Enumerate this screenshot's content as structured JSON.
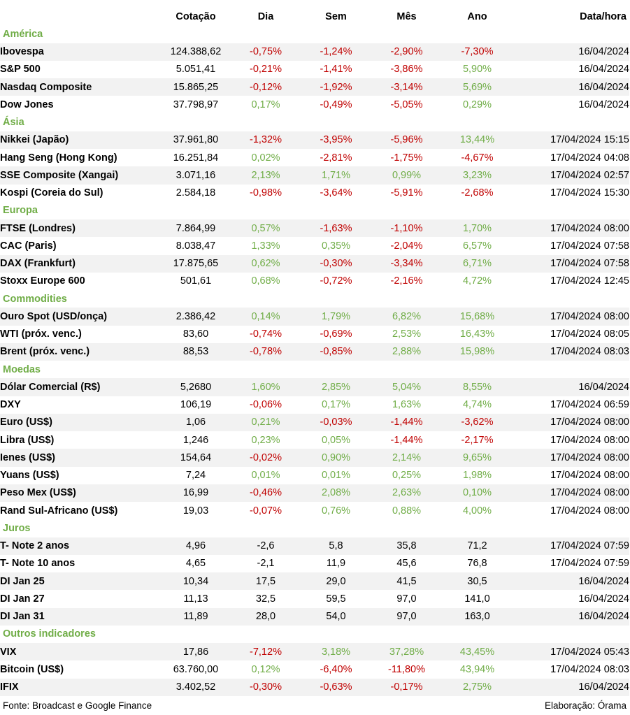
{
  "colors": {
    "section": "#70ad47",
    "positive": "#70ad47",
    "negative": "#c00000",
    "stripe": "#f2f2f2"
  },
  "headers": [
    "",
    "Cotação",
    "Dia",
    "Sem",
    "Mês",
    "Ano",
    "Data/hora"
  ],
  "sections": [
    {
      "title": "América",
      "rows": [
        {
          "name": "Ibovespa",
          "quote": "124.388,62",
          "day": "-0,75%",
          "week": "-1,24%",
          "month": "-2,90%",
          "year": "-7,30%",
          "date": "16/04/2024"
        },
        {
          "name": "S&P 500",
          "quote": "5.051,41",
          "day": "-0,21%",
          "week": "-1,41%",
          "month": "-3,86%",
          "year": "5,90%",
          "date": "16/04/2024"
        },
        {
          "name": "Nasdaq Composite",
          "quote": "15.865,25",
          "day": "-0,12%",
          "week": "-1,92%",
          "month": "-3,14%",
          "year": "5,69%",
          "date": "16/04/2024"
        },
        {
          "name": "Dow Jones",
          "quote": "37.798,97",
          "day": "0,17%",
          "week": "-0,49%",
          "month": "-5,05%",
          "year": "0,29%",
          "date": "16/04/2024"
        }
      ]
    },
    {
      "title": "Ásia",
      "rows": [
        {
          "name": "Nikkei (Japão)",
          "quote": "37.961,80",
          "day": "-1,32%",
          "week": "-3,95%",
          "month": "-5,96%",
          "year": "13,44%",
          "date": "17/04/2024 15:15"
        },
        {
          "name": "Hang Seng (Hong Kong)",
          "quote": "16.251,84",
          "day": "0,02%",
          "week": "-2,81%",
          "month": "-1,75%",
          "year": "-4,67%",
          "date": "17/04/2024 04:08"
        },
        {
          "name": "SSE Composite (Xangai)",
          "quote": "3.071,16",
          "day": "2,13%",
          "week": "1,71%",
          "month": "0,99%",
          "year": "3,23%",
          "date": "17/04/2024 02:57"
        },
        {
          "name": "Kospi (Coreia do Sul)",
          "quote": "2.584,18",
          "day": "-0,98%",
          "week": "-3,64%",
          "month": "-5,91%",
          "year": "-2,68%",
          "date": "17/04/2024 15:30"
        }
      ]
    },
    {
      "title": "Europa",
      "rows": [
        {
          "name": "FTSE (Londres)",
          "quote": "7.864,99",
          "day": "0,57%",
          "week": "-1,63%",
          "month": "-1,10%",
          "year": "1,70%",
          "date": "17/04/2024 08:00"
        },
        {
          "name": "CAC (Paris)",
          "quote": "8.038,47",
          "day": "1,33%",
          "week": "0,35%",
          "month": "-2,04%",
          "year": "6,57%",
          "date": "17/04/2024 07:58"
        },
        {
          "name": "DAX (Frankfurt)",
          "quote": "17.875,65",
          "day": "0,62%",
          "week": "-0,30%",
          "month": "-3,34%",
          "year": "6,71%",
          "date": "17/04/2024 07:58"
        },
        {
          "name": "Stoxx Europe 600",
          "quote": "501,61",
          "day": "0,68%",
          "week": "-0,72%",
          "month": "-2,16%",
          "year": "4,72%",
          "date": "17/04/2024 12:45"
        }
      ]
    },
    {
      "title": "Commodities",
      "rows": [
        {
          "name": "Ouro Spot (USD/onça)",
          "quote": "2.386,42",
          "day": "0,14%",
          "week": "1,79%",
          "month": "6,82%",
          "year": "15,68%",
          "date": "17/04/2024 08:00"
        },
        {
          "name": "WTI (próx. venc.)",
          "quote": "83,60",
          "day": "-0,74%",
          "week": "-0,69%",
          "month": "2,53%",
          "year": "16,43%",
          "date": "17/04/2024 08:05"
        },
        {
          "name": "Brent (próx. venc.)",
          "quote": "88,53",
          "day": "-0,78%",
          "week": "-0,85%",
          "month": "2,88%",
          "year": "15,98%",
          "date": "17/04/2024 08:03"
        }
      ]
    },
    {
      "title": "Moedas",
      "rows": [
        {
          "name": "Dólar Comercial (R$)",
          "quote": "5,2680",
          "day": "1,60%",
          "week": "2,85%",
          "month": "5,04%",
          "year": "8,55%",
          "date": "16/04/2024"
        },
        {
          "name": "DXY",
          "quote": "106,19",
          "day": "-0,06%",
          "week": "0,17%",
          "month": "1,63%",
          "year": "4,74%",
          "date": "17/04/2024 06:59"
        },
        {
          "name": "Euro (US$)",
          "quote": "1,06",
          "day": "0,21%",
          "week": "-0,03%",
          "month": "-1,44%",
          "year": "-3,62%",
          "date": "17/04/2024 08:00"
        },
        {
          "name": "Libra (US$)",
          "quote": "1,246",
          "day": "0,23%",
          "week": "0,05%",
          "month": "-1,44%",
          "year": "-2,17%",
          "date": "17/04/2024 08:00"
        },
        {
          "name": "Ienes (US$)",
          "quote": "154,64",
          "day": "-0,02%",
          "week": "0,90%",
          "month": "2,14%",
          "year": "9,65%",
          "date": "17/04/2024 08:00"
        },
        {
          "name": "Yuans (US$)",
          "quote": "7,24",
          "day": "0,01%",
          "week": "0,01%",
          "month": "0,25%",
          "year": "1,98%",
          "date": "17/04/2024 08:00"
        },
        {
          "name": "Peso Mex (US$)",
          "quote": "16,99",
          "day": "-0,46%",
          "week": "2,08%",
          "month": "2,63%",
          "year": "0,10%",
          "date": "17/04/2024 08:00"
        },
        {
          "name": "Rand Sul-Africano (US$)",
          "quote": "19,03",
          "day": "-0,07%",
          "week": "0,76%",
          "month": "0,88%",
          "year": "4,00%",
          "date": "17/04/2024 08:00"
        }
      ]
    },
    {
      "title": "Juros",
      "rows": [
        {
          "name": "T- Note 2 anos",
          "quote": "4,96",
          "day": "-2,6",
          "week": "5,8",
          "month": "35,8",
          "year": "71,2",
          "date": "17/04/2024 07:59"
        },
        {
          "name": "T- Note 10 anos",
          "quote": "4,65",
          "day": "-2,1",
          "week": "11,9",
          "month": "45,6",
          "year": "76,8",
          "date": "17/04/2024 07:59"
        },
        {
          "name": "DI Jan 25",
          "quote": "10,34",
          "day": "17,5",
          "week": "29,0",
          "month": "41,5",
          "year": "30,5",
          "date": "16/04/2024"
        },
        {
          "name": "DI Jan 27",
          "quote": "11,13",
          "day": "32,5",
          "week": "59,5",
          "month": "97,0",
          "year": "141,0",
          "date": "16/04/2024"
        },
        {
          "name": "DI Jan 31",
          "quote": "11,89",
          "day": "28,0",
          "week": "54,0",
          "month": "97,0",
          "year": "163,0",
          "date": "16/04/2024"
        }
      ]
    },
    {
      "title": "Outros indicadores",
      "rows": [
        {
          "name": "VIX",
          "quote": "17,86",
          "day": "-7,12%",
          "week": "3,18%",
          "month": "37,28%",
          "year": "43,45%",
          "date": "17/04/2024 05:43"
        },
        {
          "name": "Bitcoin (US$)",
          "quote": "63.760,00",
          "day": "0,12%",
          "week": "-6,40%",
          "month": "-11,80%",
          "year": "43,94%",
          "date": "17/04/2024 08:03"
        },
        {
          "name": "IFIX",
          "quote": "3.402,52",
          "day": "-0,30%",
          "week": "-0,63%",
          "month": "-0,17%",
          "year": "2,75%",
          "date": "16/04/2024"
        }
      ]
    }
  ],
  "footer": {
    "source": "Fonte: Broadcast e Google Finance",
    "credit": "Elaboração: Órama"
  }
}
